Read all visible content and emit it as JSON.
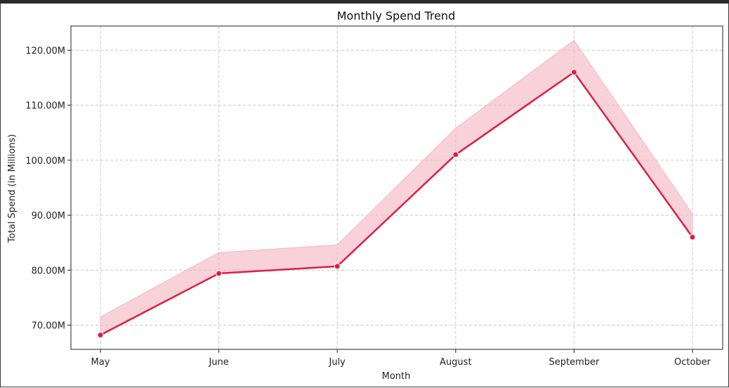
{
  "chart_data": {
    "type": "line",
    "title": "Monthly Spend Trend",
    "xlabel": "Month",
    "ylabel": "Total Spend (in Millions)",
    "categories": [
      "May",
      "June",
      "July",
      "August",
      "September",
      "October"
    ],
    "series": [
      {
        "values": [
          68.2,
          79.4,
          80.7,
          101.0,
          116.0,
          86.0
        ],
        "ci_upper": [
          71.5,
          83.2,
          84.6,
          105.8,
          121.8,
          90.2
        ],
        "ci_lower": [
          68.2,
          79.4,
          80.7,
          101.0,
          116.0,
          86.0
        ],
        "color": "#dc1e46",
        "band_color": "#f4b8c4"
      }
    ],
    "yticks": [
      70,
      80,
      90,
      100,
      110,
      120
    ],
    "ytick_labels": [
      "70.00M",
      "80.00M",
      "90.00M",
      "100.00M",
      "110.00M",
      "120.00M"
    ],
    "ylim": [
      65.6,
      124.4
    ],
    "grid": true,
    "grid_style": "dashed"
  }
}
